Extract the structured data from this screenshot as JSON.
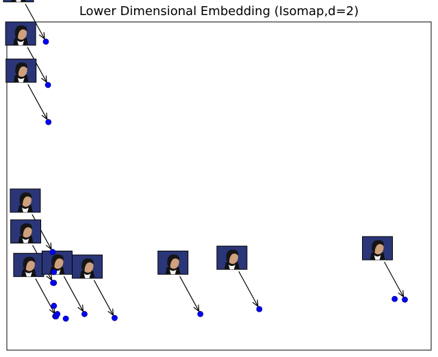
{
  "chart_data": {
    "type": "scatter",
    "title": "Lower Dimensional Embedding (Isomap,d=2)",
    "xlabel": "",
    "ylabel": "",
    "xlim": [
      0,
      1
    ],
    "ylim": [
      0,
      1
    ],
    "grid": false,
    "legend": "none",
    "axis_ticks": "hidden",
    "marker_color": "#0000ff",
    "marker_edge_color": "#000080",
    "thumbnail_bg_color": "#2b3678",
    "points": [
      {
        "x": 0.092,
        "y": 0.94,
        "thumbnail": true
      },
      {
        "x": 0.097,
        "y": 0.808,
        "thumbnail": true
      },
      {
        "x": 0.098,
        "y": 0.695,
        "thumbnail": true
      },
      {
        "x": 0.108,
        "y": 0.299,
        "thumbnail": true
      },
      {
        "x": 0.111,
        "y": 0.205,
        "thumbnail": false
      },
      {
        "x": 0.111,
        "y": 0.135,
        "thumbnail": false
      },
      {
        "x": 0.114,
        "y": 0.103,
        "thumbnail": false
      },
      {
        "x": 0.116,
        "y": 0.103,
        "thumbnail": true
      },
      {
        "x": 0.119,
        "y": 0.11,
        "thumbnail": false
      },
      {
        "x": 0.111,
        "y": 0.238,
        "thumbnail": false
      },
      {
        "x": 0.109,
        "y": 0.205,
        "thumbnail": true
      },
      {
        "x": 0.139,
        "y": 0.096,
        "thumbnail": false
      },
      {
        "x": 0.183,
        "y": 0.11,
        "thumbnail": true
      },
      {
        "x": 0.254,
        "y": 0.098,
        "thumbnail": true
      },
      {
        "x": 0.456,
        "y": 0.11,
        "thumbnail": true
      },
      {
        "x": 0.595,
        "y": 0.125,
        "thumbnail": true
      },
      {
        "x": 0.914,
        "y": 0.156,
        "thumbnail": false
      },
      {
        "x": 0.938,
        "y": 0.154,
        "thumbnail": true
      }
    ]
  }
}
